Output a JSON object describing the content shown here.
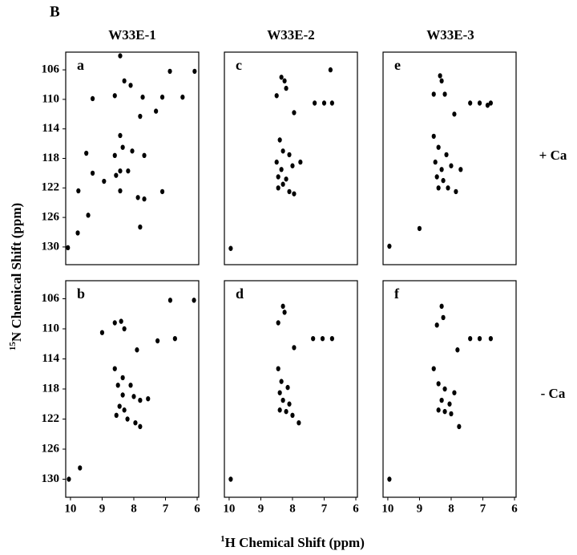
{
  "figure_label": "B",
  "column_titles": [
    "W33E-1",
    "W33E-2",
    "W33E-3"
  ],
  "row_labels": [
    "+ Ca",
    "- Ca"
  ],
  "x_label": {
    "sup": "1",
    "text": "H Chemical Shift (ppm)"
  },
  "y_label": {
    "sup": "15",
    "text": "N Chemical Shift (ppm)"
  },
  "chart_data": [
    {
      "type": "scatter",
      "panel_label": "a",
      "color": "#000000",
      "xlim": [
        10.15,
        5.95
      ],
      "ylim": [
        103.6,
        132.4
      ],
      "yticks": [
        106,
        110,
        114,
        118,
        122,
        126,
        130
      ],
      "x": [
        8.43,
        6.86,
        6.08,
        8.3,
        8.1,
        8.6,
        9.3,
        7.72,
        7.1,
        6.46,
        7.8,
        7.3,
        8.43,
        8.35,
        8.05,
        8.6,
        7.67,
        9.5,
        8.43,
        8.18,
        8.56,
        9.3,
        8.94,
        9.75,
        8.43,
        7.87,
        7.67,
        7.1,
        9.44,
        7.8,
        9.77,
        10.08
      ],
      "y": [
        104.1,
        106.2,
        106.2,
        107.5,
        108.1,
        109.5,
        109.9,
        109.7,
        109.7,
        109.7,
        112.3,
        111.6,
        114.9,
        116.5,
        117,
        117.6,
        117.6,
        117.3,
        119.7,
        119.7,
        120.3,
        120,
        121.1,
        122.4,
        122.4,
        123.3,
        123.5,
        122.5,
        125.7,
        127.3,
        128.1,
        130.1
      ]
    },
    {
      "type": "scatter",
      "panel_label": "b",
      "color": "#000000",
      "xlim": [
        10.15,
        5.95
      ],
      "ylim": [
        103.6,
        132.4
      ],
      "yticks": [
        106,
        110,
        114,
        118,
        122,
        126,
        130
      ],
      "xticks": [
        10,
        9,
        8,
        7,
        6
      ],
      "x": [
        6.85,
        6.1,
        8.6,
        8.4,
        8.3,
        9.0,
        7.25,
        6.7,
        7.9,
        8.6,
        8.35,
        8.5,
        8.1,
        8.35,
        8.0,
        7.8,
        7.55,
        8.45,
        8.3,
        8.55,
        8.2,
        7.95,
        7.8,
        9.7,
        10.05
      ],
      "y": [
        106.2,
        106.2,
        109.2,
        109,
        110,
        110.5,
        111.6,
        111.3,
        112.8,
        115.3,
        116.5,
        117.5,
        117.5,
        118.8,
        119,
        119.5,
        119.3,
        120.3,
        120.8,
        121.5,
        122,
        122.5,
        123,
        128.5,
        130
      ]
    },
    {
      "type": "scatter",
      "panel_label": "c",
      "color": "#000000",
      "xlim": [
        10.15,
        5.95
      ],
      "ylim": [
        103.6,
        132.4
      ],
      "x": [
        8.35,
        8.25,
        8.5,
        8.2,
        7.95,
        7.3,
        7.0,
        6.75,
        6.8,
        8.4,
        8.3,
        8.1,
        8.5,
        8.35,
        8.45,
        8.2,
        8.0,
        8.3,
        8.45,
        8.1,
        7.95,
        7.75,
        9.95
      ],
      "y": [
        107,
        107.5,
        109.5,
        108.5,
        111.8,
        110.5,
        110.5,
        110.5,
        106,
        115.5,
        117,
        117.5,
        118.5,
        119.5,
        120.5,
        120.8,
        119,
        121.5,
        122,
        122.5,
        122.8,
        118.5,
        130.2
      ]
    },
    {
      "type": "scatter",
      "panel_label": "d",
      "color": "#000000",
      "xlim": [
        10.15,
        5.95
      ],
      "ylim": [
        103.6,
        132.4
      ],
      "xticks": [
        10,
        9,
        8,
        7,
        6
      ],
      "x": [
        8.3,
        8.25,
        8.45,
        7.95,
        7.35,
        7.05,
        6.75,
        8.45,
        8.35,
        8.15,
        8.4,
        8.3,
        8.1,
        8.4,
        8.2,
        8.0,
        7.8,
        9.95
      ],
      "y": [
        107,
        107.8,
        109.2,
        112.5,
        111.3,
        111.3,
        111.3,
        115.3,
        117,
        117.8,
        118.5,
        119.5,
        120,
        120.8,
        121,
        121.5,
        122.5,
        130
      ]
    },
    {
      "type": "scatter",
      "panel_label": "e",
      "color": "#000000",
      "xlim": [
        10.15,
        5.95
      ],
      "ylim": [
        103.6,
        132.4
      ],
      "x": [
        8.35,
        8.3,
        8.55,
        8.2,
        7.9,
        7.4,
        7.1,
        6.75,
        6.85,
        8.55,
        8.4,
        8.15,
        8.5,
        8.3,
        8.0,
        7.7,
        8.45,
        8.25,
        8.4,
        8.1,
        7.85,
        9.95,
        9.0
      ],
      "y": [
        106.8,
        107.5,
        109.3,
        109.3,
        112,
        110.5,
        110.5,
        110.5,
        110.8,
        115,
        116.5,
        117.5,
        118.5,
        119.5,
        119,
        119.5,
        120.5,
        121,
        122,
        122,
        122.5,
        129.9,
        127.5
      ]
    },
    {
      "type": "scatter",
      "panel_label": "f",
      "color": "#000000",
      "xlim": [
        10.15,
        5.95
      ],
      "ylim": [
        103.6,
        132.4
      ],
      "xticks": [
        10,
        9,
        8,
        7,
        6
      ],
      "x": [
        8.3,
        8.25,
        8.45,
        7.8,
        7.4,
        7.1,
        6.75,
        8.55,
        8.4,
        8.2,
        7.9,
        8.3,
        8.05,
        8.4,
        8.2,
        8.0,
        7.75,
        9.95
      ],
      "y": [
        107,
        108.5,
        109.5,
        112.8,
        111.3,
        111.3,
        111.3,
        115.3,
        117.3,
        118,
        118.5,
        119.5,
        120,
        120.8,
        121,
        121.3,
        123,
        130
      ]
    }
  ]
}
